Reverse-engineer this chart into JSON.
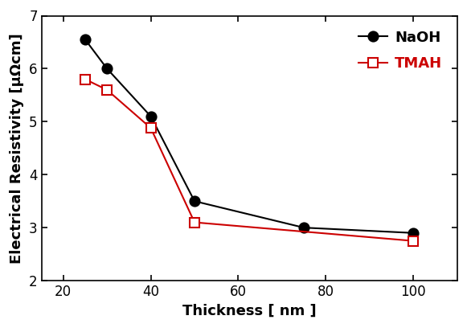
{
  "naoh_x": [
    25,
    30,
    40,
    50,
    75,
    100
  ],
  "naoh_y": [
    6.55,
    6.0,
    5.1,
    3.5,
    3.0,
    2.9
  ],
  "tmah_x": [
    25,
    30,
    40,
    50,
    100
  ],
  "tmah_y": [
    5.8,
    5.6,
    4.88,
    3.1,
    2.75
  ],
  "naoh_color": "#000000",
  "tmah_color": "#cc0000",
  "naoh_label": "NaOH",
  "tmah_label": "TMAH",
  "xlabel": "Thickness [ nm ]",
  "ylabel": "Electrical Resistivity [μΩcm]",
  "xlim": [
    15,
    110
  ],
  "ylim": [
    2,
    7
  ],
  "yticks": [
    2,
    3,
    4,
    5,
    6,
    7
  ],
  "xticks": [
    20,
    40,
    60,
    80,
    100
  ],
  "background_color": "#ffffff",
  "legend_fontsize": 13,
  "axis_fontsize": 13,
  "tick_fontsize": 12,
  "naoh_markersize": 9,
  "tmah_markersize": 8,
  "linewidth": 1.5
}
